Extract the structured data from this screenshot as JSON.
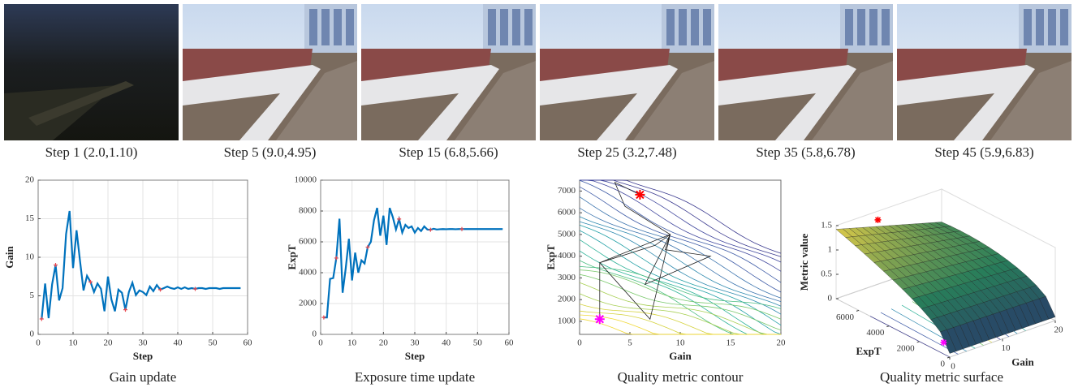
{
  "images": [
    {
      "caption": "Step 1 (2.0,1.10)"
    },
    {
      "caption": "Step 5 (9.0,4.95)"
    },
    {
      "caption": "Step 15 (6.8,5.66)"
    },
    {
      "caption": "Step 25 (3.2,7.48)"
    },
    {
      "caption": "Step 35 (5.8,6.78)"
    },
    {
      "caption": "Step 45 (5.9,6.83)"
    }
  ],
  "chart_data": [
    {
      "type": "line",
      "title": "Gain update",
      "x_label": "Step",
      "y_label": "Gain",
      "x": [
        1,
        2,
        3,
        4,
        5,
        6,
        7,
        8,
        9,
        10,
        11,
        12,
        13,
        14,
        15,
        16,
        17,
        18,
        19,
        20,
        21,
        22,
        23,
        24,
        25,
        26,
        27,
        28,
        29,
        30,
        31,
        32,
        33,
        34,
        35,
        36,
        37,
        38,
        39,
        40,
        41,
        42,
        43,
        44,
        45,
        46,
        47,
        48,
        49,
        50,
        51,
        52,
        53,
        54,
        55,
        56,
        57,
        58
      ],
      "values": [
        2.0,
        6.6,
        2.1,
        6.5,
        9.0,
        4.4,
        6.0,
        13,
        16,
        8.6,
        13.5,
        9.5,
        5.7,
        7.6,
        6.8,
        5.5,
        6.6,
        5.9,
        3.0,
        7.5,
        4.5,
        3.0,
        5.8,
        5.4,
        3.2,
        5.5,
        6.7,
        5.1,
        5.7,
        5.5,
        5.1,
        6.2,
        5.6,
        6.4,
        5.8,
        6.0,
        6.2,
        6.0,
        5.9,
        6.1,
        5.9,
        6.1,
        5.9,
        6.0,
        5.9,
        6.0,
        6.0,
        5.9,
        6.0,
        6.0,
        6.0,
        5.9,
        6.0,
        6.0,
        6.0,
        6.0,
        6.0,
        6.0
      ],
      "color": "#0072bd",
      "highlight_x": [
        1,
        5,
        15,
        25,
        35,
        45
      ],
      "highlight_color": "#e8474e",
      "xlim": [
        0,
        60
      ],
      "xticks": [
        0,
        10,
        20,
        30,
        40,
        50,
        60
      ],
      "ylim": [
        0,
        20
      ],
      "yticks": [
        0,
        5,
        10,
        15,
        20
      ],
      "grid": true
    },
    {
      "type": "line",
      "title": "Exposure time update",
      "x_label": "Step",
      "y_label": "ExpT",
      "x": [
        1,
        2,
        3,
        4,
        5,
        6,
        7,
        8,
        9,
        10,
        11,
        12,
        13,
        14,
        15,
        16,
        17,
        18,
        19,
        20,
        21,
        22,
        23,
        24,
        25,
        26,
        27,
        28,
        29,
        30,
        31,
        32,
        33,
        34,
        35,
        36,
        37,
        38,
        39,
        40,
        41,
        42,
        43,
        44,
        45,
        46,
        47,
        48,
        49,
        50,
        51,
        52,
        53,
        54,
        55,
        56,
        57,
        58
      ],
      "values": [
        1100,
        1100,
        3600,
        3650,
        4950,
        7500,
        2700,
        4300,
        6200,
        3500,
        5300,
        4000,
        4800,
        4600,
        5660,
        6000,
        7400,
        8200,
        6400,
        7700,
        5800,
        8200,
        7600,
        6800,
        7480,
        6600,
        7100,
        6900,
        7000,
        6600,
        6900,
        6700,
        7000,
        6800,
        6780,
        6850,
        6800,
        6820,
        6830,
        6820,
        6830,
        6830,
        6820,
        6830,
        6830,
        6830,
        6830,
        6830,
        6830,
        6830,
        6830,
        6830,
        6830,
        6830,
        6830,
        6830,
        6830,
        6830
      ],
      "color": "#0072bd",
      "highlight_x": [
        1,
        5,
        15,
        25,
        35,
        45
      ],
      "highlight_color": "#e8474e",
      "xlim": [
        0,
        60
      ],
      "xticks": [
        0,
        10,
        20,
        30,
        40,
        50,
        60
      ],
      "ylim": [
        0,
        10000
      ],
      "yticks": [
        0,
        2000,
        4000,
        6000,
        8000,
        10000
      ],
      "grid": true
    },
    {
      "type": "contour",
      "title": "Quality metric contour",
      "x_label": "Gain",
      "y_label": "ExpT",
      "x": [
        2,
        2,
        7,
        9,
        6.5,
        13,
        8.5,
        9,
        2,
        7.5,
        9,
        4.5,
        3.5,
        6
      ],
      "y": [
        1100,
        3700,
        1100,
        5000,
        2700,
        4000,
        4300,
        5000,
        3700,
        4500,
        5000,
        6300,
        7400,
        6830
      ],
      "color": "#222222",
      "start_color": "#ff00ff",
      "end_color": "#ff0000",
      "xlim": [
        0,
        20
      ],
      "xticks": [
        0,
        5,
        10,
        15,
        20
      ],
      "ylim": [
        400,
        7500
      ],
      "yticks": [
        1000,
        2000,
        3000,
        4000,
        5000,
        6000,
        7000
      ]
    },
    {
      "type": "surface",
      "title": "Quality metric surface",
      "x_label": "Gain",
      "y_label": "ExpT",
      "z_label": "Metric value",
      "xlim": [
        0,
        20
      ],
      "xticks": [
        0,
        10,
        20
      ],
      "ylim": [
        0,
        7500
      ],
      "yticks": [
        0,
        2000,
        4000,
        6000
      ],
      "zlim": [
        0,
        1.5
      ],
      "zticks": [
        0,
        0.5,
        1,
        1.5
      ],
      "points_x": [
        2,
        6
      ],
      "points_y": [
        1100,
        6830
      ],
      "points_z": [
        0.05,
        1.5
      ],
      "start_color": "#ff00ff",
      "end_color": "#ff0000"
    }
  ]
}
